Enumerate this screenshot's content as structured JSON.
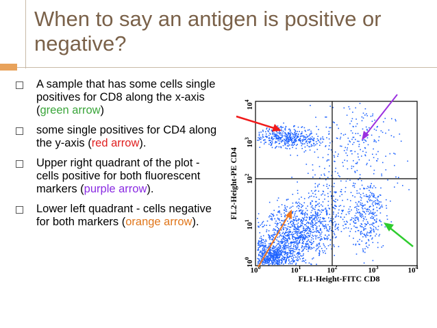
{
  "slide": {
    "title": "When to say an antigen is positive or negative?",
    "bullets": [
      {
        "parts": [
          "A sample that has some cells single positives for CD8 along the x-axis (",
          "green arrow",
          ")"
        ]
      },
      {
        "parts": [
          "some single positives for CD4 along the y-axis (",
          "red arrow",
          ")."
        ]
      },
      {
        "parts": [
          "Upper right quadrant of the plot - cells positive for both fluorescent markers (",
          "purple arrow",
          ")."
        ]
      },
      {
        "parts": [
          "Lower left quadrant - cells negative for both markers (",
          "orange arrow",
          ")."
        ]
      }
    ]
  },
  "plot": {
    "xlabel": "FL1-Height-FITC CD8",
    "ylabel": "FL2-Height-PE CD4",
    "x_ticks": [
      "10",
      "10",
      "10",
      "10",
      "10"
    ],
    "x_exp": [
      "0",
      "1",
      "2",
      "3",
      "4"
    ],
    "y_ticks": [
      "10",
      "10",
      "10",
      "10",
      "10"
    ],
    "y_exp": [
      "0",
      "1",
      "2",
      "3",
      "4"
    ],
    "colors": {
      "dots": "#1e63ff",
      "green": "#2ecc2e",
      "red": "#f01a1a",
      "purple": "#9b30e0",
      "orange": "#f07820"
    }
  }
}
